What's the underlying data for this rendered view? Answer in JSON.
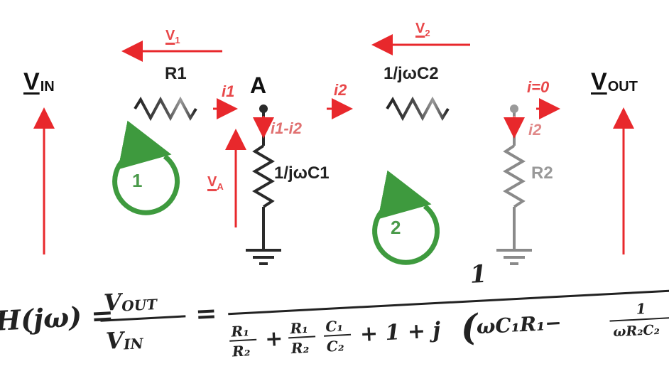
{
  "labels": {
    "vin_main": "V",
    "vin_sub": "IN",
    "vout_main": "V",
    "vout_sub": "OUT",
    "r1": "R1",
    "node_a": "A",
    "c2": "1/jωC2",
    "c1": "1/jωC1",
    "r2": "R2",
    "i1": "i1",
    "i2_top": "i2",
    "i_zero": "i=0",
    "i1_minus_i2": "i1-i2",
    "i2_right": "i2",
    "v1_main": "V",
    "v1_sub": "1",
    "v2_main": "V",
    "v2_sub": "2",
    "va_main": "V",
    "va_sub": "A",
    "loop1": "1",
    "loop2": "2"
  },
  "formula": {
    "lhs": "H(jω) =",
    "num_top": "V",
    "num_top_sub": "OUT",
    "num_bottom": "V",
    "num_bottom_sub": "IN",
    "equals": "=",
    "rhs_numerator": "1",
    "term_r1": "R₁",
    "term_r2": "R₂",
    "plus1": "+",
    "term_r1b": "R₁",
    "term_r2b": "R₂",
    "term_c1": "C₁",
    "term_c2": "C₂",
    "plus2": "+ 1 + j",
    "paren_open": "(",
    "omega_term": "ωC₁R₁−",
    "frac_top": "1",
    "frac_bottom": "ωR₂C₂"
  },
  "colors": {
    "wire": "#222222",
    "red_arrow": "#e8282c",
    "loop_green": "#3e9a3e"
  }
}
